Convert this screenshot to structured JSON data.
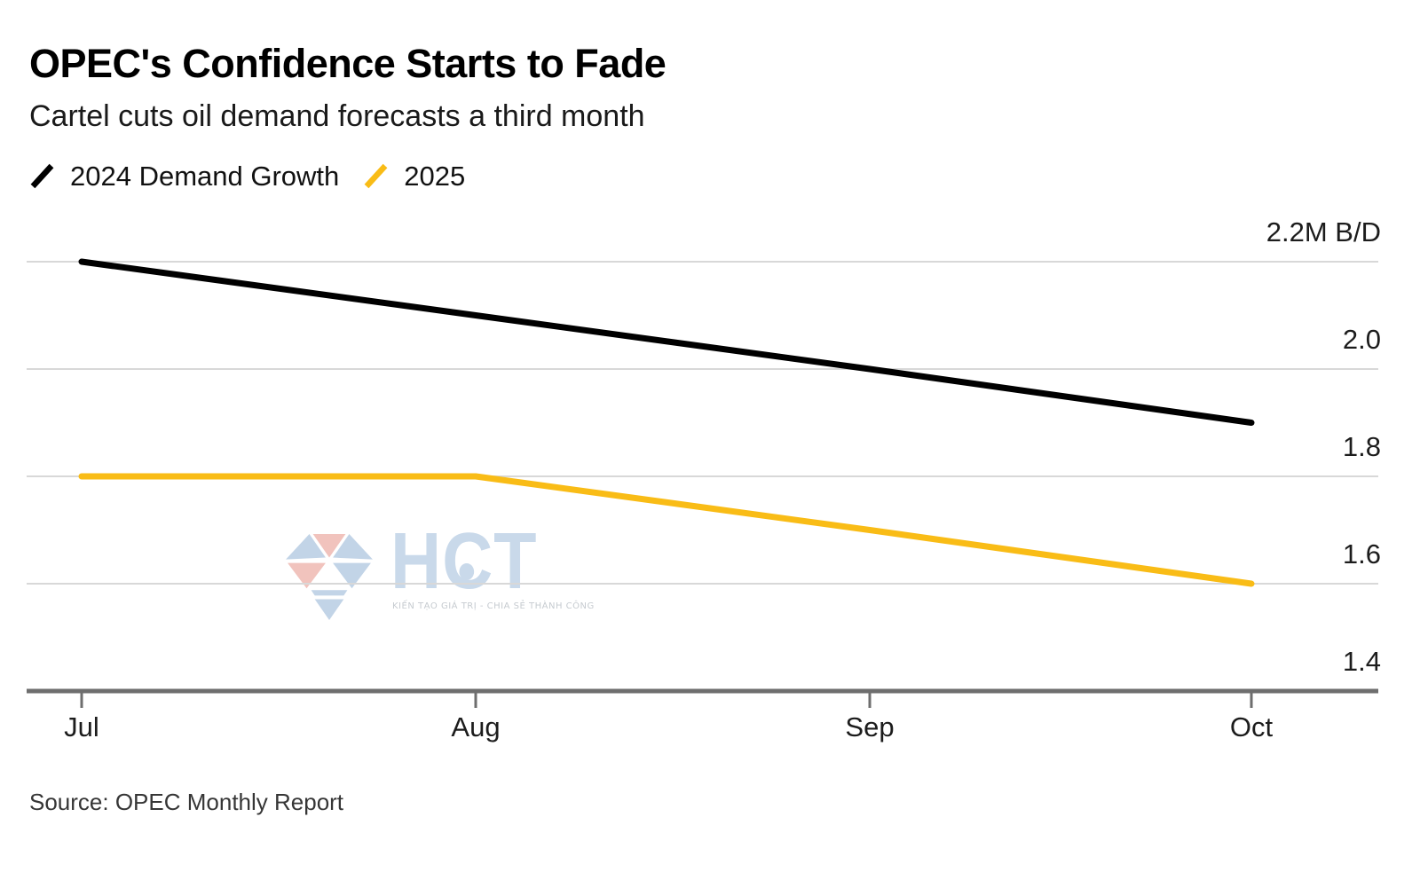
{
  "header": {
    "title": "OPEC's Confidence Starts to Fade",
    "subtitle": "Cartel cuts oil demand forecasts a third month"
  },
  "legend": [
    {
      "label": "2024 Demand Growth",
      "color": "#000000"
    },
    {
      "label": "2025",
      "color": "#F9BC16"
    }
  ],
  "source": "Source: OPEC Monthly Report",
  "watermark": {
    "text": "HCT",
    "tagline": "KIẾN TẠO GIÁ TRỊ - CHIA SẺ THÀNH CÔNG"
  },
  "chart_data": {
    "type": "line",
    "title": "OPEC's Confidence Starts to Fade",
    "subtitle": "Cartel cuts oil demand forecasts a third month",
    "categories": [
      "Jul",
      "Aug",
      "Sep",
      "Oct"
    ],
    "series": [
      {
        "name": "2024 Demand Growth",
        "color": "#000000",
        "values": [
          2.2,
          2.1,
          2.0,
          1.9
        ]
      },
      {
        "name": "2025",
        "color": "#F9BC16",
        "values": [
          1.8,
          1.8,
          1.7,
          1.6
        ]
      }
    ],
    "ylabel": "M B/D",
    "y_ticks": [
      2.2,
      2.0,
      1.8,
      1.6,
      1.4
    ],
    "y_tick_labels": [
      "2.2M B/D",
      "2.0",
      "1.8",
      "1.6",
      "1.4"
    ],
    "grid_values": [
      2.2,
      2.0,
      1.8,
      1.6
    ],
    "ylim": [
      1.4,
      2.25
    ],
    "grid": "horizontal",
    "legend_position": "top-left",
    "colors": {
      "gridline": "#D8D8D8",
      "axis": "#6E6E6E"
    },
    "source": "Source: OPEC Monthly Report"
  }
}
